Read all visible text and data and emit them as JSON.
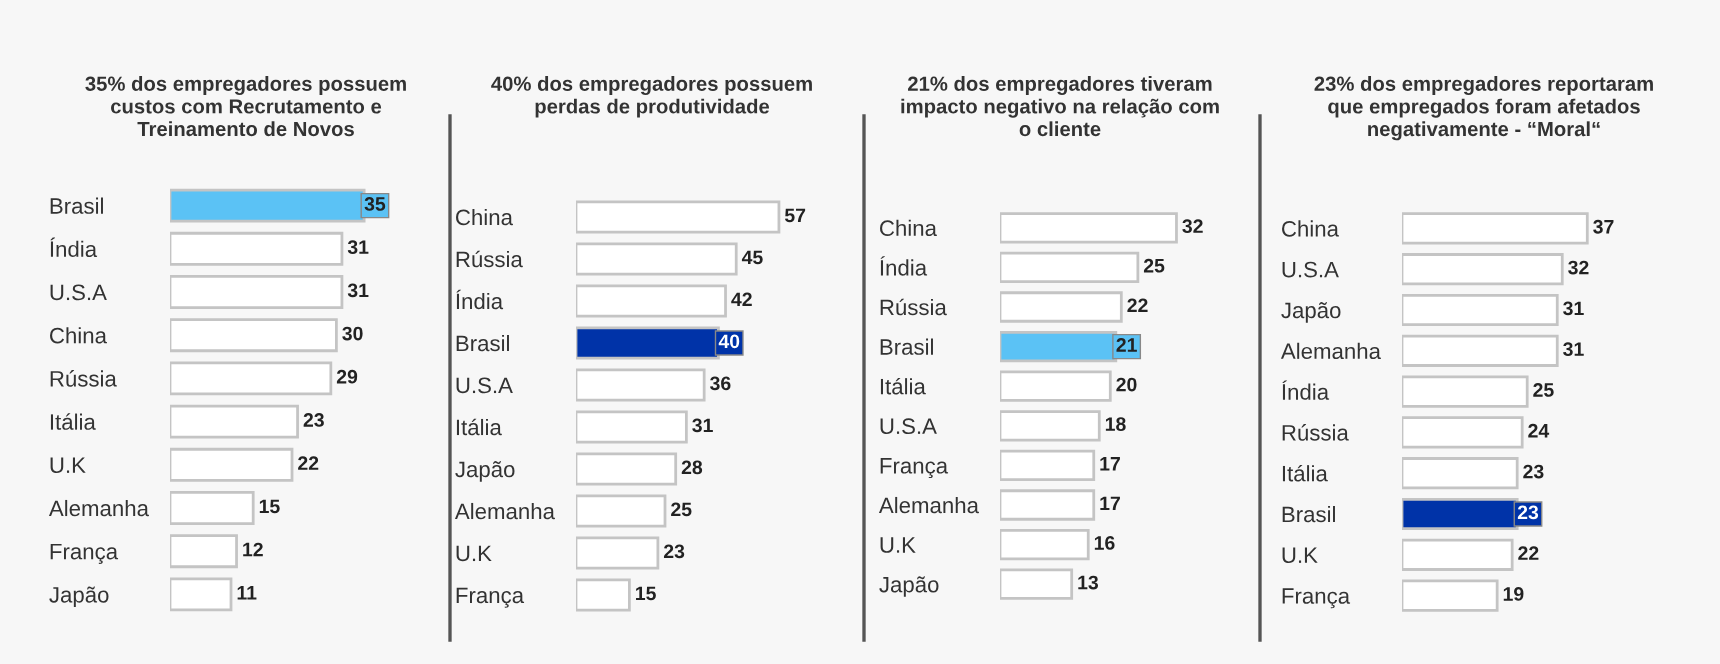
{
  "chart_data": [
    {
      "type": "bar",
      "orientation": "horizontal",
      "title": "35% dos empregadores possuem\ncustos com Recrutamento e\nTreinamento de Novos",
      "categories": [
        "Brasil",
        "Índia",
        "U.S.A",
        "China",
        "Rússia",
        "Itália",
        "U.K",
        "Alemanha",
        "França",
        "Japão"
      ],
      "values": [
        35,
        31,
        31,
        30,
        29,
        23,
        22,
        15,
        12,
        11
      ],
      "colors": [
        "#5bc2f5",
        "#ffffff",
        "#ffffff",
        "#ffffff",
        "#ffffff",
        "#ffffff",
        "#ffffff",
        "#ffffff",
        "#ffffff",
        "#ffffff"
      ],
      "data_labels": true
    },
    {
      "type": "bar",
      "orientation": "horizontal",
      "title": "40% dos empregadores possuem\nperdas de produtividade",
      "categories": [
        "China",
        "Rússia",
        "Índia",
        "Brasil",
        "U.S.A",
        "Itália",
        "Japão",
        "Alemanha",
        "U.K",
        "França"
      ],
      "values": [
        57,
        45,
        42,
        40,
        36,
        31,
        28,
        25,
        23,
        15
      ],
      "colors": [
        "#ffffff",
        "#ffffff",
        "#ffffff",
        "#0033a8",
        "#ffffff",
        "#ffffff",
        "#ffffff",
        "#ffffff",
        "#ffffff",
        "#ffffff"
      ],
      "data_labels": true
    },
    {
      "type": "bar",
      "orientation": "horizontal",
      "title": "21% dos empregadores tiveram\nimpacto negativo na relação com\no cliente",
      "categories": [
        "China",
        "Índia",
        "Rússia",
        "Brasil",
        "Itália",
        "U.S.A",
        "França",
        "Alemanha",
        "U.K",
        "Japão"
      ],
      "values": [
        32,
        25,
        22,
        21,
        20,
        18,
        17,
        17,
        16,
        13
      ],
      "colors": [
        "#ffffff",
        "#ffffff",
        "#ffffff",
        "#5bc2f5",
        "#ffffff",
        "#ffffff",
        "#ffffff",
        "#ffffff",
        "#ffffff",
        "#ffffff"
      ],
      "data_labels": true
    },
    {
      "type": "bar",
      "orientation": "horizontal",
      "title": "23% dos empregadores reportaram\nque empregados foram afetados\nnegativamente - “Moral“",
      "categories": [
        "China",
        "U.S.A",
        "Japão",
        "Alemanha",
        "Índia",
        "Rússia",
        "Itália",
        "Brasil",
        "U.K",
        "França"
      ],
      "values": [
        37,
        32,
        31,
        31,
        25,
        24,
        23,
        23,
        22,
        19
      ],
      "colors": [
        "#ffffff",
        "#ffffff",
        "#ffffff",
        "#ffffff",
        "#ffffff",
        "#ffffff",
        "#ffffff",
        "#0033a8",
        "#ffffff",
        "#ffffff"
      ],
      "data_labels": true
    }
  ]
}
